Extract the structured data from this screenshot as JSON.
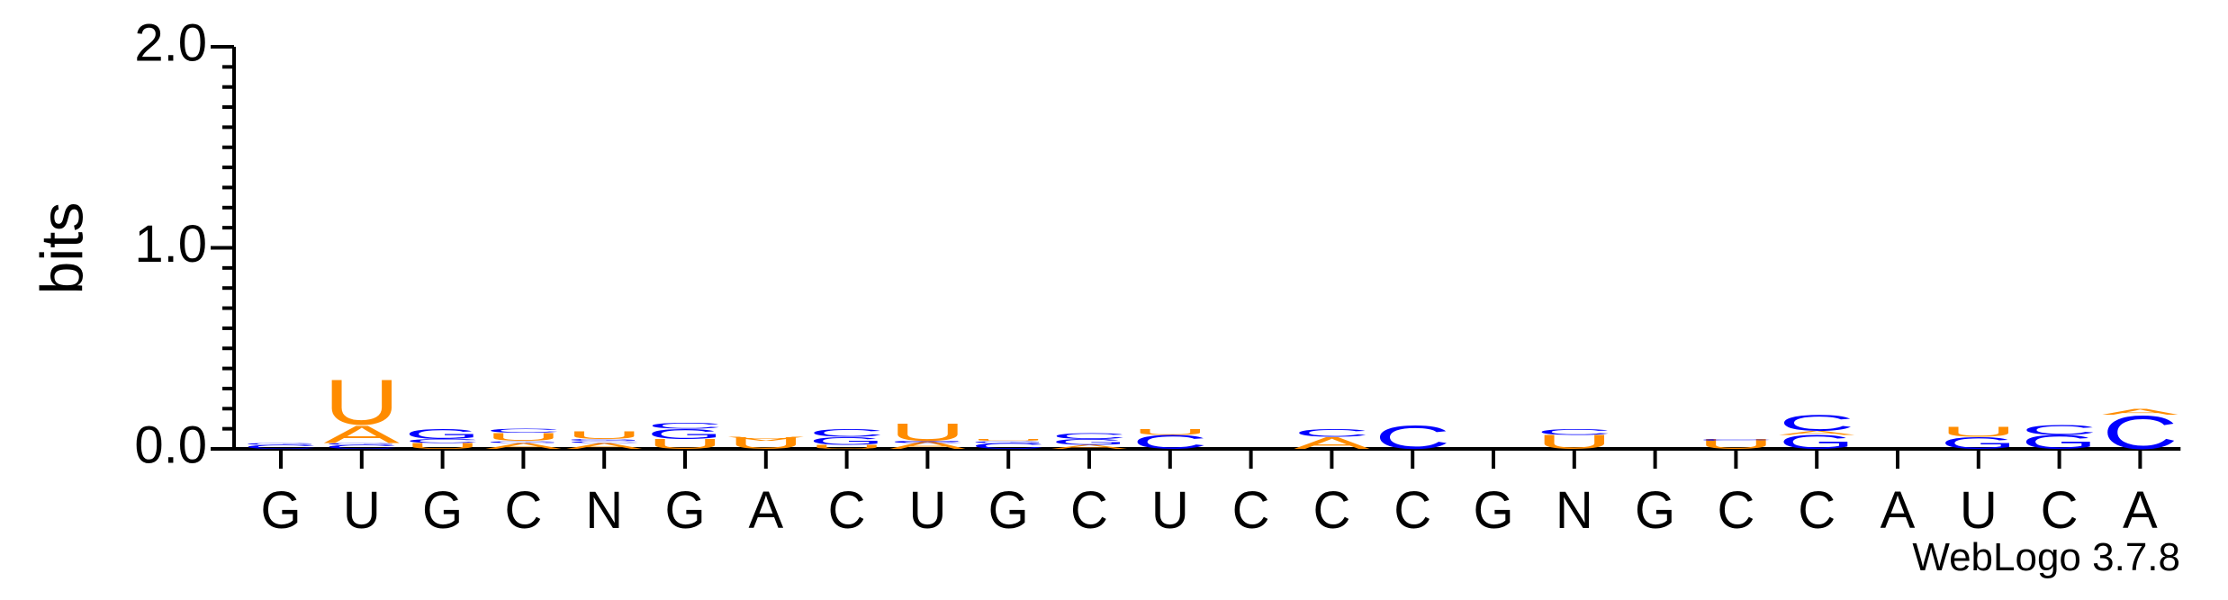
{
  "chart_data": {
    "type": "logo",
    "ylabel": "bits",
    "footer": "WebLogo 3.7.8",
    "categories": [
      "G",
      "U",
      "G",
      "C",
      "N",
      "G",
      "A",
      "C",
      "U",
      "G",
      "C",
      "U",
      "C",
      "C",
      "C",
      "G",
      "N",
      "G",
      "C",
      "C",
      "A",
      "U",
      "C",
      "A"
    ],
    "letter_colors": {
      "A": "#ff8c00",
      "U": "#ff8c00",
      "G": "#0000ff",
      "C": "#0000ff"
    },
    "ylim": [
      0,
      2.0
    ],
    "yticks": [
      {
        "value": 0,
        "label": "0.0"
      },
      {
        "value": 1,
        "label": "1.0"
      },
      {
        "value": 2,
        "label": "2.0"
      }
    ],
    "yminorticks": [
      0.1,
      0.2,
      0.3,
      0.4,
      0.5,
      0.6,
      0.7,
      0.8,
      0.9,
      1.1,
      1.2,
      1.3,
      1.4,
      1.5,
      1.6,
      1.7,
      1.8,
      1.9
    ],
    "columns": [
      {
        "stack": [
          {
            "letter": "C",
            "bits": 0.02
          },
          {
            "letter": "G",
            "bits": 0.03
          }
        ]
      },
      {
        "stack": [
          {
            "letter": "C",
            "bits": 0.02
          },
          {
            "letter": "G",
            "bits": 0.03
          },
          {
            "letter": "A",
            "bits": 0.12
          },
          {
            "letter": "U",
            "bits": 0.35
          }
        ]
      },
      {
        "stack": [
          {
            "letter": "U",
            "bits": 0.03
          },
          {
            "letter": "C",
            "bits": 0.05
          },
          {
            "letter": "G",
            "bits": 0.1
          }
        ]
      },
      {
        "stack": [
          {
            "letter": "A",
            "bits": 0.03
          },
          {
            "letter": "G",
            "bits": 0.04
          },
          {
            "letter": "U",
            "bits": 0.08
          },
          {
            "letter": "C",
            "bits": 0.1
          }
        ]
      },
      {
        "stack": [
          {
            "letter": "A",
            "bits": 0.03
          },
          {
            "letter": "C",
            "bits": 0.04
          },
          {
            "letter": "G",
            "bits": 0.05
          },
          {
            "letter": "U",
            "bits": 0.09
          }
        ]
      },
      {
        "stack": [
          {
            "letter": "U",
            "bits": 0.05
          },
          {
            "letter": "G",
            "bits": 0.1
          },
          {
            "letter": "C",
            "bits": 0.13
          }
        ]
      },
      {
        "stack": [
          {
            "letter": "U",
            "bits": 0.06
          },
          {
            "letter": "A",
            "bits": 0.04
          }
        ]
      },
      {
        "stack": [
          {
            "letter": "U",
            "bits": 0.02
          },
          {
            "letter": "G",
            "bits": 0.06
          },
          {
            "letter": "C",
            "bits": 0.1
          }
        ]
      },
      {
        "stack": [
          {
            "letter": "A",
            "bits": 0.04
          },
          {
            "letter": "G",
            "bits": 0.03
          },
          {
            "letter": "C",
            "bits": 0.04
          },
          {
            "letter": "U",
            "bits": 0.13
          }
        ]
      },
      {
        "stack": [
          {
            "letter": "C",
            "bits": 0.03
          },
          {
            "letter": "G",
            "bits": 0.04
          },
          {
            "letter": "U",
            "bits": 0.05
          }
        ]
      },
      {
        "stack": [
          {
            "letter": "A",
            "bits": 0.02
          },
          {
            "letter": "G",
            "bits": 0.05
          },
          {
            "letter": "C",
            "bits": 0.08
          }
        ]
      },
      {
        "stack": [
          {
            "letter": "C",
            "bits": 0.07
          },
          {
            "letter": "U",
            "bits": 0.1
          }
        ]
      },
      {
        "stack": []
      },
      {
        "stack": [
          {
            "letter": "A",
            "bits": 0.06
          },
          {
            "letter": "C",
            "bits": 0.1
          }
        ]
      },
      {
        "stack": [
          {
            "letter": "C",
            "bits": 0.12
          }
        ]
      },
      {
        "stack": []
      },
      {
        "stack": [
          {
            "letter": "U",
            "bits": 0.07
          },
          {
            "letter": "C",
            "bits": 0.1
          }
        ]
      },
      {
        "stack": []
      },
      {
        "stack": [
          {
            "letter": "U",
            "bits": 0.05
          },
          {
            "letter": "C",
            "bits": 0.04
          }
        ]
      },
      {
        "stack": [
          {
            "letter": "G",
            "bits": 0.07
          },
          {
            "letter": "A",
            "bits": 0.09
          },
          {
            "letter": "C",
            "bits": 0.17
          }
        ]
      },
      {
        "stack": []
      },
      {
        "stack": [
          {
            "letter": "G",
            "bits": 0.06
          },
          {
            "letter": "U",
            "bits": 0.11
          }
        ]
      },
      {
        "stack": [
          {
            "letter": "G",
            "bits": 0.07
          },
          {
            "letter": "C",
            "bits": 0.12
          }
        ]
      },
      {
        "stack": [
          {
            "letter": "C",
            "bits": 0.17
          },
          {
            "letter": "A",
            "bits": 0.2
          }
        ]
      }
    ]
  }
}
